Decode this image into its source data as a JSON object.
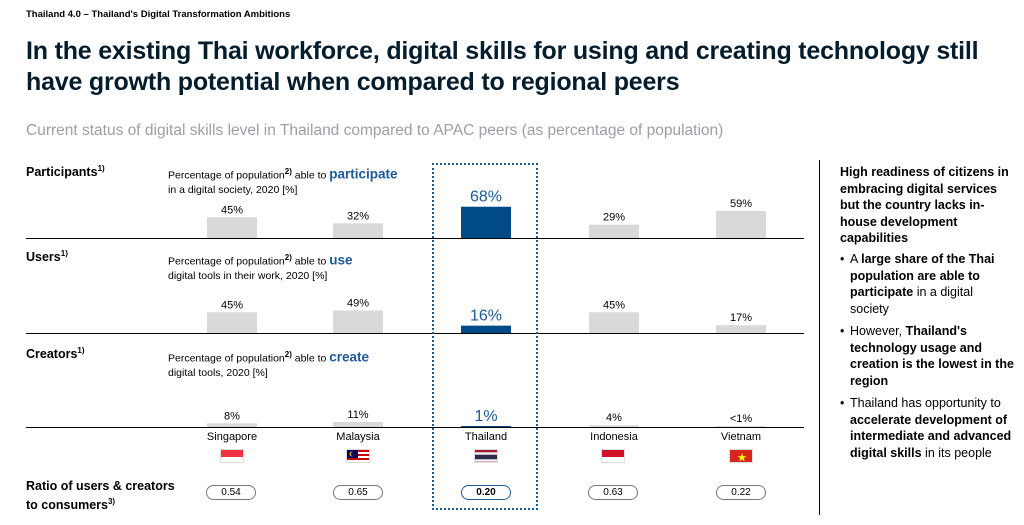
{
  "header": {
    "kicker": "Thailand 4.0 – Thailand's Digital Transformation Ambitions",
    "title": "In the existing Thai workforce, digital skills for using and creating technology still have growth potential when compared to regional peers",
    "subtitle": "Current status of digital skills level in Thailand compared to APAC peers (as percentage of population)"
  },
  "rows": [
    {
      "label": "Participants",
      "label_sup": "1)",
      "desc_pre": "Percentage of population",
      "desc_sup": "2)",
      "desc_mid": " able to ",
      "keyword": "participate",
      "desc_post": "in a digital society, 2020 [%]"
    },
    {
      "label": "Users",
      "label_sup": "1)",
      "desc_pre": "Percentage of population",
      "desc_sup": "2)",
      "desc_mid": " able to ",
      "keyword": "use",
      "desc_post": "digital tools in their work, 2020 [%]"
    },
    {
      "label": "Creators",
      "label_sup": "1)",
      "desc_pre": "Percentage of population",
      "desc_sup": "2)",
      "desc_mid": " able to ",
      "keyword": "create",
      "desc_post": "digital tools, 2020 [%]"
    }
  ],
  "ratio": {
    "label_line1": "Ratio of users & creators",
    "label_line2": "to consumers",
    "label_sup": "3)"
  },
  "sidebar": {
    "heading": "High readiness of citizens in embracing digital services but the country lacks in-house development capabilities",
    "b1_pre": "A ",
    "b1_bold": "large share of the Thai population are able to participate",
    "b1_post": " in a digital society",
    "b2_pre": "However, ",
    "b2_bold": "Thailand's technology usage and creation is the lowest in the region",
    "b2_post": "",
    "b3_pre": "Thailand has opportunity to ",
    "b3_bold": "accelerate development of intermediate and advanced digital skills",
    "b3_post": " in its people"
  },
  "colors": {
    "bar_default": "#d9d9d9",
    "bar_highlight": "#004b87",
    "label_highlight": "#1c5a99",
    "keyword": "#1c5a99"
  },
  "flags": [
    "singapore-flag-icon",
    "malaysia-flag-icon",
    "thailand-flag-icon",
    "indonesia-flag-icon",
    "vietnam-flag-icon"
  ],
  "chart_data": {
    "type": "bar",
    "categories": [
      "Singapore",
      "Malaysia",
      "Thailand",
      "Indonesia",
      "Vietnam"
    ],
    "highlight": "Thailand",
    "series": [
      {
        "name": "Participants",
        "values": [
          45,
          32,
          68,
          29,
          59
        ],
        "labels": [
          "45%",
          "32%",
          "68%",
          "29%",
          "59%"
        ]
      },
      {
        "name": "Users",
        "values": [
          45,
          49,
          16,
          45,
          17
        ],
        "labels": [
          "45%",
          "49%",
          "16%",
          "45%",
          "17%"
        ]
      },
      {
        "name": "Creators",
        "values": [
          8,
          11,
          1,
          4,
          0.5
        ],
        "labels": [
          "8%",
          "11%",
          "1%",
          "4%",
          "<1%"
        ]
      }
    ],
    "ratio_values": [
      0.54,
      0.65,
      0.2,
      0.63,
      0.22
    ],
    "ratio_labels": [
      "0.54",
      "0.65",
      "0.20",
      "0.63",
      "0.22"
    ],
    "grid": false
  }
}
